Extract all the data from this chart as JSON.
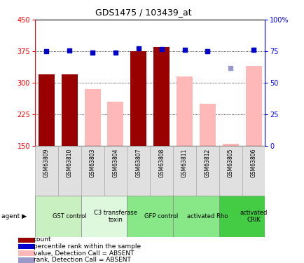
{
  "title": "GDS1475 / 103439_at",
  "samples": [
    "GSM63809",
    "GSM63810",
    "GSM63803",
    "GSM63804",
    "GSM63807",
    "GSM63808",
    "GSM63811",
    "GSM63812",
    "GSM63805",
    "GSM63806"
  ],
  "agents": [
    {
      "label": "GST control",
      "start": 0,
      "end": 2,
      "color": "#c8f0c0"
    },
    {
      "label": "C3 transferase\ntoxin",
      "start": 2,
      "end": 4,
      "color": "#ddf8dd"
    },
    {
      "label": "GFP control",
      "start": 4,
      "end": 6,
      "color": "#88e888"
    },
    {
      "label": "activated Rho",
      "start": 6,
      "end": 8,
      "color": "#88e888"
    },
    {
      "label": "activated\nCRIK",
      "start": 8,
      "end": 10,
      "color": "#44cc44"
    }
  ],
  "bar_values": [
    320,
    320,
    null,
    null,
    375,
    385,
    null,
    null,
    null,
    null
  ],
  "pink_bar_values": [
    null,
    null,
    285,
    255,
    null,
    null,
    315,
    250,
    155,
    340
  ],
  "blue_dot_values": [
    375,
    377,
    372,
    372,
    382,
    380,
    378,
    376,
    null,
    378
  ],
  "lightblue_dot_values": [
    null,
    null,
    372,
    null,
    null,
    null,
    null,
    375,
    335,
    378
  ],
  "ymin": 150,
  "ymax": 450,
  "yticks": [
    150,
    225,
    300,
    375,
    450
  ],
  "right_yticks": [
    0,
    25,
    50,
    75,
    100
  ],
  "right_yticklabels": [
    "0",
    "25",
    "50",
    "75",
    "100%"
  ],
  "bar_color_dark": "#990000",
  "bar_color_pink": "#ffb8b8",
  "dot_color_dark_blue": "#0000cc",
  "dot_color_light_blue": "#9999cc",
  "legend_items": [
    {
      "color": "#990000",
      "label": "count"
    },
    {
      "color": "#0000cc",
      "label": "percentile rank within the sample"
    },
    {
      "color": "#ffb8b8",
      "label": "value, Detection Call = ABSENT"
    },
    {
      "color": "#9999cc",
      "label": "rank, Detection Call = ABSENT"
    }
  ]
}
